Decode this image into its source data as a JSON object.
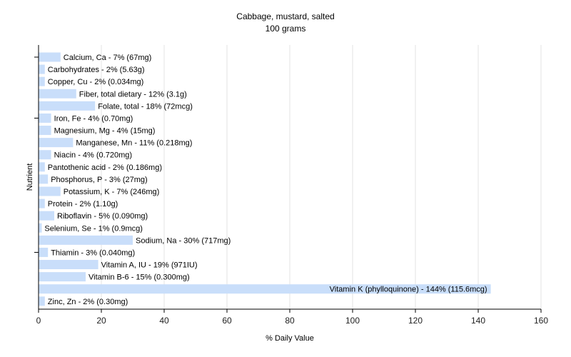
{
  "chart_data": {
    "type": "bar",
    "orientation": "horizontal",
    "title": "Cabbage, mustard, salted",
    "subtitle": "100 grams",
    "xlabel": "% Daily Value",
    "ylabel": "Nutrient",
    "xlim": [
      0,
      160
    ],
    "xticks": [
      0,
      20,
      40,
      60,
      80,
      100,
      120,
      140,
      160
    ],
    "grid": "vertical",
    "bar_color": "#c9defa",
    "bars": [
      {
        "nutrient": "Calcium, Ca",
        "value": 7,
        "label": "Calcium, Ca - 7% (67mg)"
      },
      {
        "nutrient": "Carbohydrates",
        "value": 2,
        "label": "Carbohydrates - 2% (5.63g)"
      },
      {
        "nutrient": "Copper, Cu",
        "value": 2,
        "label": "Copper, Cu - 2% (0.034mg)"
      },
      {
        "nutrient": "Fiber, total dietary",
        "value": 12,
        "label": "Fiber, total dietary - 12% (3.1g)"
      },
      {
        "nutrient": "Folate, total",
        "value": 18,
        "label": "Folate, total - 18% (72mcg)"
      },
      {
        "nutrient": "Iron, Fe",
        "value": 4,
        "label": "Iron, Fe - 4% (0.70mg)"
      },
      {
        "nutrient": "Magnesium, Mg",
        "value": 4,
        "label": "Magnesium, Mg - 4% (15mg)"
      },
      {
        "nutrient": "Manganese, Mn",
        "value": 11,
        "label": "Manganese, Mn - 11% (0.218mg)"
      },
      {
        "nutrient": "Niacin",
        "value": 4,
        "label": "Niacin - 4% (0.720mg)"
      },
      {
        "nutrient": "Pantothenic acid",
        "value": 2,
        "label": "Pantothenic acid - 2% (0.186mg)"
      },
      {
        "nutrient": "Phosphorus, P",
        "value": 3,
        "label": "Phosphorus, P - 3% (27mg)"
      },
      {
        "nutrient": "Potassium, K",
        "value": 7,
        "label": "Potassium, K - 7% (246mg)"
      },
      {
        "nutrient": "Protein",
        "value": 2,
        "label": "Protein - 2% (1.10g)"
      },
      {
        "nutrient": "Riboflavin",
        "value": 5,
        "label": "Riboflavin - 5% (0.090mg)"
      },
      {
        "nutrient": "Selenium, Se",
        "value": 1,
        "label": "Selenium, Se - 1% (0.9mcg)"
      },
      {
        "nutrient": "Sodium, Na",
        "value": 30,
        "label": "Sodium, Na - 30% (717mg)"
      },
      {
        "nutrient": "Thiamin",
        "value": 3,
        "label": "Thiamin - 3% (0.040mg)"
      },
      {
        "nutrient": "Vitamin A, IU",
        "value": 19,
        "label": "Vitamin A, IU - 19% (971IU)"
      },
      {
        "nutrient": "Vitamin B-6",
        "value": 15,
        "label": "Vitamin B-6 - 15% (0.300mg)"
      },
      {
        "nutrient": "Vitamin K (phylloquinone)",
        "value": 144,
        "label": "Vitamin K (phylloquinone) - 144% (115.6mcg)"
      },
      {
        "nutrient": "Zinc, Zn",
        "value": 2,
        "label": "Zinc, Zn - 2% (0.30mg)"
      }
    ]
  }
}
